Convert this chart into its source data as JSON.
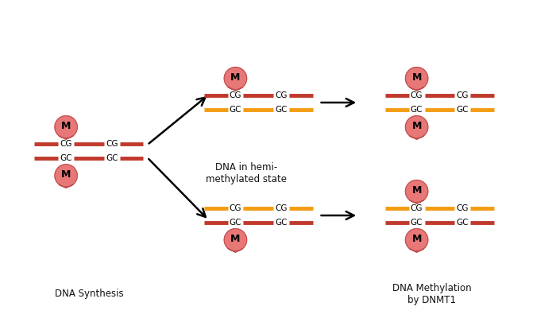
{
  "bg_color": "#ffffff",
  "dark_red": "#C0392B",
  "orange": "#F39C12",
  "marker_color": "#E87878",
  "marker_outline": "#C05050",
  "text_color": "#111111",
  "label_dna_synthesis": "DNA Synthesis",
  "label_hemi": "DNA in hemi-\nmethylated state",
  "label_methylation": "DNA Methylation\nby DNMT1",
  "lw": 3.5
}
